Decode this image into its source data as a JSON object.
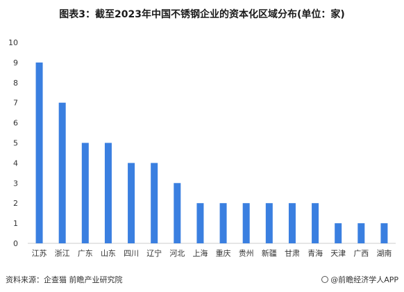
{
  "title": "图表3：截至2023年中国不锈钢企业的资本化区域分布(单位：家)",
  "chart_data": {
    "type": "bar",
    "categories": [
      "江苏",
      "浙江",
      "广东",
      "山东",
      "四川",
      "辽宁",
      "河北",
      "上海",
      "重庆",
      "贵州",
      "新疆",
      "甘肃",
      "青海",
      "天津",
      "广西",
      "湖南"
    ],
    "values": [
      9,
      7,
      5,
      5,
      4,
      4,
      3,
      2,
      2,
      2,
      2,
      2,
      2,
      1,
      1,
      1
    ],
    "ylim": [
      0,
      10
    ],
    "yticks": [
      0,
      1,
      2,
      3,
      4,
      5,
      6,
      7,
      8,
      9,
      10
    ],
    "bar_color": "#3a7fe0",
    "grid": false,
    "legend": "none"
  },
  "footer": {
    "source": "资料来源：企查猫 前瞻产业研究院",
    "brand": "@前瞻经济学人APP"
  },
  "colors": {
    "bar": "#3a7fe0",
    "axis": "#cccccc",
    "text": "#333333"
  }
}
